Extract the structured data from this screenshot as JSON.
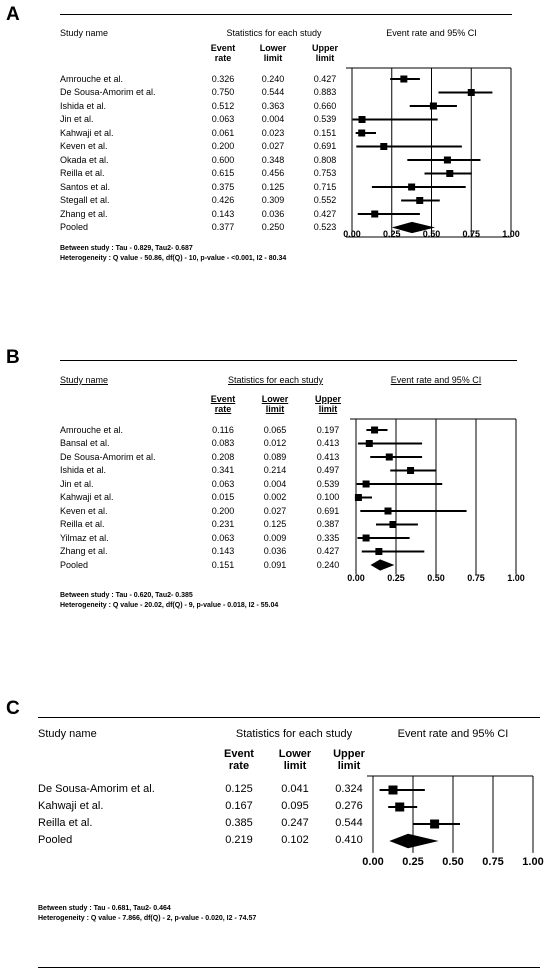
{
  "chart_data": [
    {
      "type": "forest",
      "panel_label": "A",
      "columns": {
        "study": "Study name",
        "stats_group": "Statistics for each study",
        "plot_title": "Event rate and 95% CI",
        "event_rate": "Event\nrate",
        "lower": "Lower\nlimit",
        "upper": "Upper\nlimit"
      },
      "xlim": [
        0,
        1
      ],
      "ticks": [
        "0.00",
        "0.25",
        "0.50",
        "0.75",
        "1.00"
      ],
      "rows": [
        {
          "study": "Amrouche et al.",
          "rate": "0.326",
          "lower": "0.240",
          "upper": "0.427"
        },
        {
          "study": "De Sousa-Amorim et al.",
          "rate": "0.750",
          "lower": "0.544",
          "upper": "0.883"
        },
        {
          "study": "Ishida et al.",
          "rate": "0.512",
          "lower": "0.363",
          "upper": "0.660"
        },
        {
          "study": "Jin et al.",
          "rate": "0.063",
          "lower": "0.004",
          "upper": "0.539"
        },
        {
          "study": "Kahwaji et al.",
          "rate": "0.061",
          "lower": "0.023",
          "upper": "0.151"
        },
        {
          "study": "Keven et al.",
          "rate": "0.200",
          "lower": "0.027",
          "upper": "0.691"
        },
        {
          "study": "Okada et al.",
          "rate": "0.600",
          "lower": "0.348",
          "upper": "0.808"
        },
        {
          "study": "Reilla et al.",
          "rate": "0.615",
          "lower": "0.456",
          "upper": "0.753"
        },
        {
          "study": "Santos et al.",
          "rate": "0.375",
          "lower": "0.125",
          "upper": "0.715"
        },
        {
          "study": "Stegall et al.",
          "rate": "0.426",
          "lower": "0.309",
          "upper": "0.552"
        },
        {
          "study": "Zhang et al.",
          "rate": "0.143",
          "lower": "0.036",
          "upper": "0.427"
        }
      ],
      "pooled": {
        "study": "Pooled",
        "rate": "0.377",
        "lower": "0.250",
        "upper": "0.523"
      },
      "footnotes": [
        "Between study : Tau - 0.829, Tau2- 0.687",
        "Heterogeneity : Q value - 50.86, df(Q) - 10, p-value - <0.001, I2 - 80.34"
      ]
    },
    {
      "type": "forest",
      "panel_label": "B",
      "columns": {
        "study": "Study name",
        "stats_group": "Statistics for each study",
        "plot_title": "Event rate and 95% CI",
        "event_rate": "Event\nrate",
        "lower": "Lower\nlimit",
        "upper": "Upper\nlimit"
      },
      "xlim": [
        0,
        1
      ],
      "ticks": [
        "0.00",
        "0.25",
        "0.50",
        "0.75",
        "1.00"
      ],
      "rows": [
        {
          "study": "Amrouche et al.",
          "rate": "0.116",
          "lower": "0.065",
          "upper": "0.197"
        },
        {
          "study": "Bansal et al.",
          "rate": "0.083",
          "lower": "0.012",
          "upper": "0.413"
        },
        {
          "study": "De Sousa-Amorim et al.",
          "rate": "0.208",
          "lower": "0.089",
          "upper": "0.413"
        },
        {
          "study": "Ishida et al.",
          "rate": "0.341",
          "lower": "0.214",
          "upper": "0.497"
        },
        {
          "study": "Jin et al.",
          "rate": "0.063",
          "lower": "0.004",
          "upper": "0.539"
        },
        {
          "study": "Kahwaji et al.",
          "rate": "0.015",
          "lower": "0.002",
          "upper": "0.100"
        },
        {
          "study": "Keven et al.",
          "rate": "0.200",
          "lower": "0.027",
          "upper": "0.691"
        },
        {
          "study": "Reilla et al.",
          "rate": "0.231",
          "lower": "0.125",
          "upper": "0.387"
        },
        {
          "study": "Yilmaz et al.",
          "rate": "0.063",
          "lower": "0.009",
          "upper": "0.335"
        },
        {
          "study": "Zhang et al.",
          "rate": "0.143",
          "lower": "0.036",
          "upper": "0.427"
        }
      ],
      "pooled": {
        "study": "Pooled",
        "rate": "0.151",
        "lower": "0.091",
        "upper": "0.240"
      },
      "footnotes": [
        "Between study : Tau - 0.620, Tau2- 0.385",
        "Heterogeneity : Q value - 20.02, df(Q) - 9, p-value - 0.018, I2 - 55.04"
      ]
    },
    {
      "type": "forest",
      "panel_label": "C",
      "columns": {
        "study": "Study name",
        "stats_group": "Statistics for each study",
        "plot_title": "Event rate and 95% CI",
        "event_rate": "Event\nrate",
        "lower": "Lower\nlimit",
        "upper": "Upper\nlimit"
      },
      "xlim": [
        0,
        1
      ],
      "ticks": [
        "0.00",
        "0.25",
        "0.50",
        "0.75",
        "1.00"
      ],
      "rows": [
        {
          "study": "De Sousa-Amorim et al.",
          "rate": "0.125",
          "lower": "0.041",
          "upper": "0.324"
        },
        {
          "study": "Kahwaji et al.",
          "rate": "0.167",
          "lower": "0.095",
          "upper": "0.276"
        },
        {
          "study": "Reilla et al.",
          "rate": "0.385",
          "lower": "0.247",
          "upper": "0.544"
        }
      ],
      "pooled": {
        "study": "Pooled",
        "rate": "0.219",
        "lower": "0.102",
        "upper": "0.410"
      },
      "footnotes": [
        "Between study : Tau - 0.681, Tau2- 0.464",
        "Heterogeneity : Q value - 7.866, df(Q) - 2, p-value - 0.020, I2 - 74.57"
      ]
    }
  ]
}
